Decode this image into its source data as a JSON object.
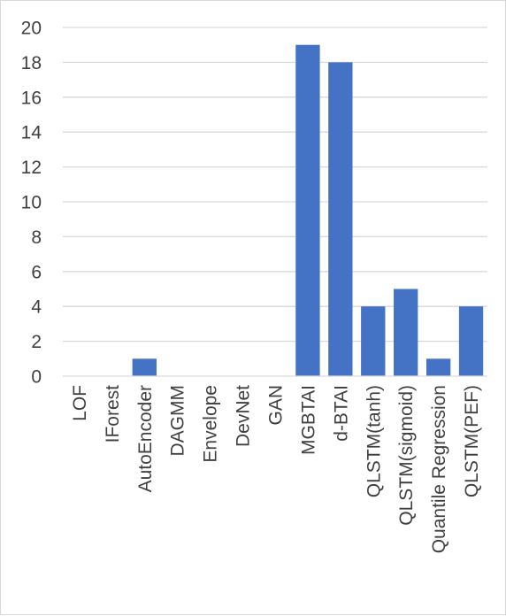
{
  "chart_data": {
    "type": "bar",
    "categories": [
      "LOF",
      "IForest",
      "AutoEncoder",
      "DAGMM",
      "Envelope",
      "DevNet",
      "GAN",
      "MGBTAI",
      "d-BTAI",
      "QLSTM(tanh)",
      "QLSTM(sigmoid)",
      "Quantile Regression",
      "QLSTM(PEF)"
    ],
    "values": [
      0,
      0,
      1,
      0,
      0,
      0,
      0,
      19,
      18,
      4,
      5,
      1,
      4
    ],
    "ylim": [
      0,
      20
    ],
    "yticks": [
      0,
      2,
      4,
      6,
      8,
      10,
      12,
      14,
      16,
      18,
      20
    ],
    "grid": true,
    "bar_color": "#4472c4",
    "grid_color": "#d9d9d9",
    "text_color": "#404040"
  }
}
